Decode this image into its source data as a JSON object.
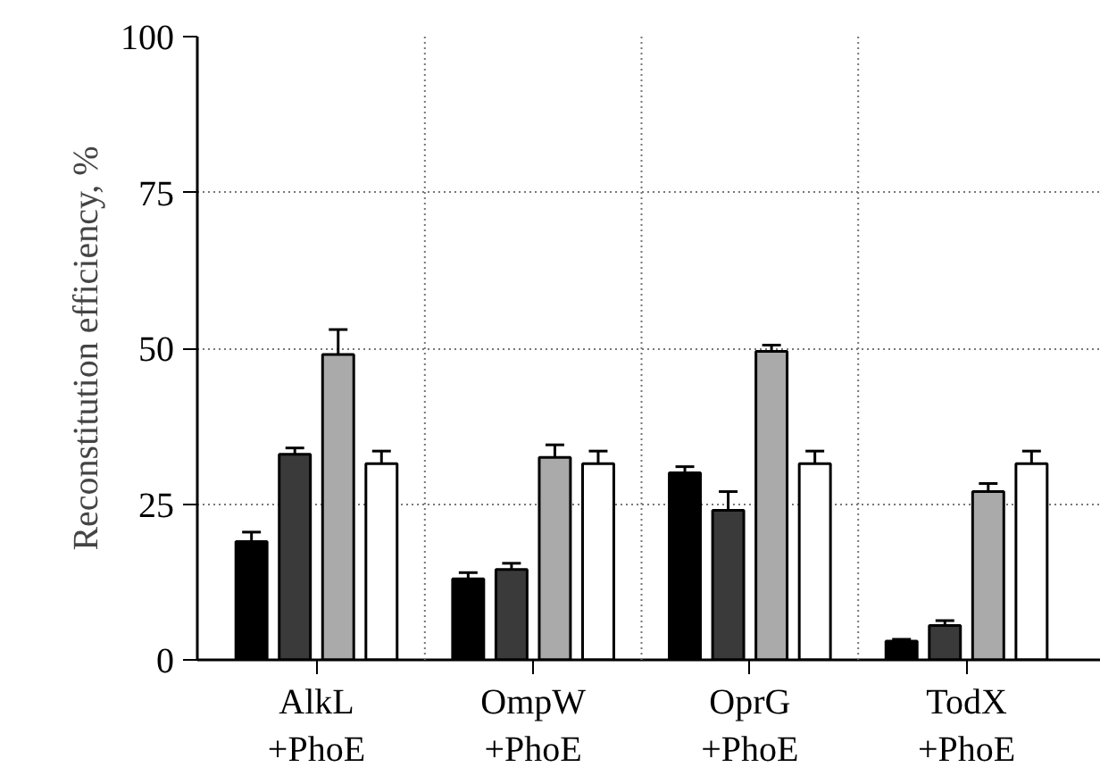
{
  "chart_data": {
    "type": "bar",
    "ylabel": "Reconstitution efficiency, %",
    "categories": [
      "AlkL\n+PhoE",
      "OmpW\n+PhoE",
      "OprG\n+PhoE",
      "TodX\n+PhoE"
    ],
    "series": [
      {
        "color": "#000000",
        "values": [
          19,
          13,
          30,
          3
        ],
        "errors": [
          [
            19,
            20.5
          ],
          [
            13,
            14
          ],
          [
            30,
            31
          ],
          [
            3,
            3.3
          ]
        ]
      },
      {
        "color": "#3a3a3a",
        "values": [
          33,
          14.5,
          24,
          5.5
        ],
        "errors": [
          [
            33,
            34
          ],
          [
            14.5,
            15.5
          ],
          [
            24,
            27
          ],
          [
            5.5,
            6.3
          ]
        ]
      },
      {
        "color": "#aaaaaa",
        "values": [
          49,
          32.5,
          49.5,
          27
        ],
        "errors": [
          [
            49,
            53
          ],
          [
            32.5,
            34.5
          ],
          [
            49.5,
            50.5
          ],
          [
            27,
            28.3
          ]
        ]
      },
      {
        "color": "#ffffff",
        "values": [
          31.5,
          31.5,
          31.5,
          31.5
        ],
        "errors": [
          [
            31.5,
            33.5
          ],
          [
            31.5,
            33.5
          ],
          [
            31.5,
            33.5
          ],
          [
            31.5,
            33.5
          ]
        ]
      }
    ],
    "ylim": [
      0,
      100
    ],
    "yticks": [
      0,
      25,
      50,
      75,
      100
    ],
    "grid": true
  }
}
